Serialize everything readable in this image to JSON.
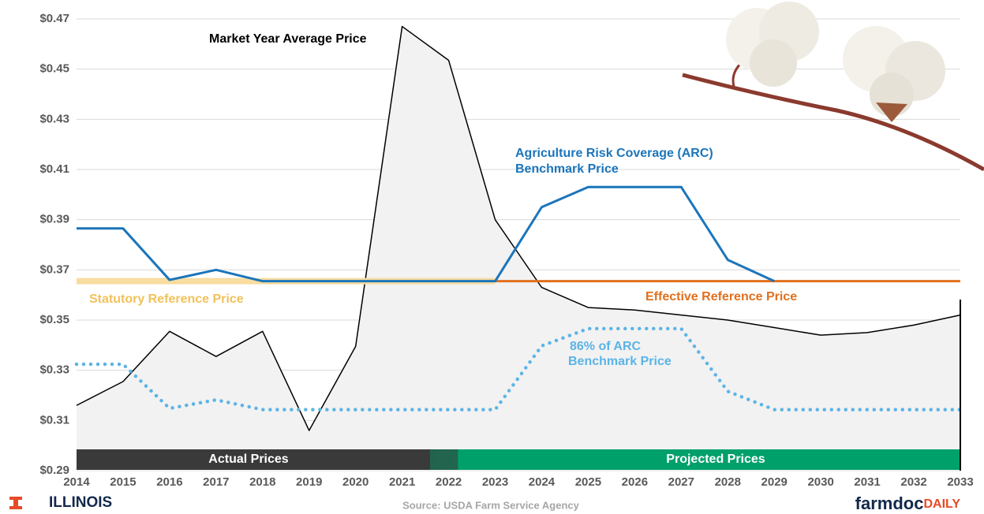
{
  "chart_data": {
    "type": "line",
    "x": [
      2014,
      2015,
      2016,
      2017,
      2018,
      2019,
      2020,
      2021,
      2022,
      2023,
      2024,
      2025,
      2026,
      2027,
      2028,
      2029,
      2030,
      2031,
      2032,
      2033
    ],
    "xlim": [
      2014,
      2033
    ],
    "xticks": [
      2014,
      2015,
      2016,
      2017,
      2018,
      2019,
      2020,
      2021,
      2022,
      2023,
      2024,
      2025,
      2026,
      2027,
      2028,
      2029,
      2030,
      2031,
      2032,
      2033
    ],
    "ylim": [
      0.29,
      0.47
    ],
    "yticks": [
      {
        "value": 0.29,
        "label": "$0.29"
      },
      {
        "value": 0.31,
        "label": "$0.31"
      },
      {
        "value": 0.33,
        "label": "$0.33"
      },
      {
        "value": 0.35,
        "label": "$0.35"
      },
      {
        "value": 0.37,
        "label": "$0.37"
      },
      {
        "value": 0.39,
        "label": "$0.39"
      },
      {
        "value": 0.41,
        "label": "$0.41"
      },
      {
        "value": 0.43,
        "label": "$0.43"
      },
      {
        "value": 0.45,
        "label": "$0.45"
      },
      {
        "value": 0.47,
        "label": "$0.47"
      }
    ],
    "grid": true,
    "series": [
      {
        "name": "Market Year Average Price",
        "color": "#000000",
        "fill": "#f2f2f2",
        "style": "solid",
        "values": [
          0.316,
          0.3255,
          0.3455,
          0.3355,
          0.3455,
          0.306,
          0.3395,
          0.467,
          0.4535,
          0.39,
          0.363,
          0.355,
          0.354,
          0.352,
          0.35,
          0.347,
          0.344,
          0.345,
          0.348,
          0.352
        ]
      },
      {
        "name": "Statutory Reference Price",
        "color": "#f8dca0",
        "style": "thick",
        "values": [
          0.3655,
          0.3655,
          0.3655,
          0.3655,
          0.3655,
          0.3655,
          0.3655,
          0.3655,
          0.3655,
          0.3655,
          null,
          null,
          null,
          null,
          null,
          null,
          null,
          null,
          null,
          null
        ]
      },
      {
        "name": "Effective Reference Price",
        "color": "#e0701e",
        "style": "solid",
        "values": [
          null,
          null,
          null,
          null,
          null,
          null,
          null,
          null,
          null,
          0.3655,
          0.3655,
          0.3655,
          0.3655,
          0.3655,
          0.3655,
          0.3655,
          0.3655,
          0.3655,
          0.3655,
          0.3655
        ]
      },
      {
        "name": "Agriculture Risk Coverage (ARC) Benchmark Price",
        "color": "#1b75bb",
        "style": "solid",
        "values": [
          0.3865,
          0.3865,
          0.366,
          0.37,
          0.3655,
          0.3655,
          0.3655,
          0.3655,
          0.3655,
          0.3655,
          0.395,
          0.403,
          0.403,
          0.403,
          0.374,
          0.3655,
          null,
          null,
          null,
          null
        ]
      },
      {
        "name": "86% of ARC Benchmark Price",
        "color": "#5bb4e5",
        "style": "dotted",
        "values": [
          0.3324,
          0.3324,
          0.3148,
          0.3182,
          0.3143,
          0.3143,
          0.3143,
          0.3143,
          0.3143,
          0.3143,
          0.3397,
          0.3466,
          0.3466,
          0.3466,
          0.3216,
          0.3143,
          0.3143,
          0.3143,
          0.3143,
          0.3143
        ]
      }
    ],
    "annotations": [
      "Market Year Average Price",
      "Agriculture Risk Coverage (ARC)",
      "Benchmark Price",
      "Statutory Reference Price",
      "Effective Reference Price",
      "86% of ARC",
      "Benchmark Price"
    ],
    "bands": [
      "Actual Prices",
      "Projected Prices"
    ]
  },
  "footer": {
    "logo": "ILLINOIS",
    "source": "Source: USDA Farm Service Agency",
    "brand": "farmdoc",
    "brand_suffix": "DAILY"
  }
}
